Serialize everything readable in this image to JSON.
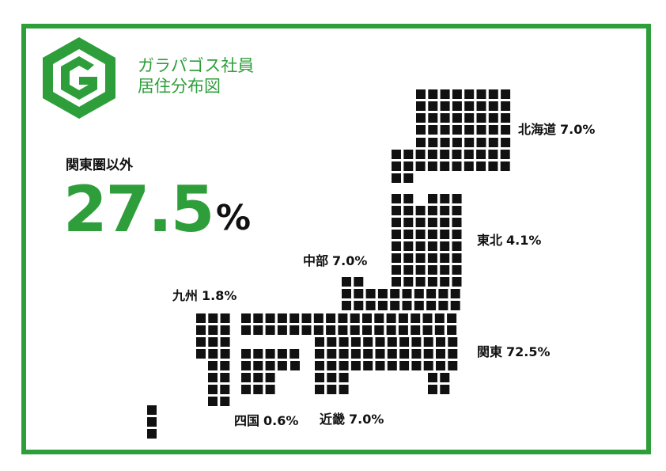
{
  "logo": {
    "title_line1": "ガラパゴス社員",
    "title_line2": "居住分布図"
  },
  "stat": {
    "label": "関東圏以外",
    "value": "27.5",
    "unit": "%"
  },
  "regions": [
    {
      "name": "北海道",
      "value": "7.0%"
    },
    {
      "name": "東北",
      "value": "4.1%"
    },
    {
      "name": "中部",
      "value": "7.0%"
    },
    {
      "name": "九州",
      "value": "1.8%"
    },
    {
      "name": "関東",
      "value": "72.5%"
    },
    {
      "name": "四国",
      "value": "0.6%"
    },
    {
      "name": "近畿",
      "value": "7.0%"
    }
  ]
}
